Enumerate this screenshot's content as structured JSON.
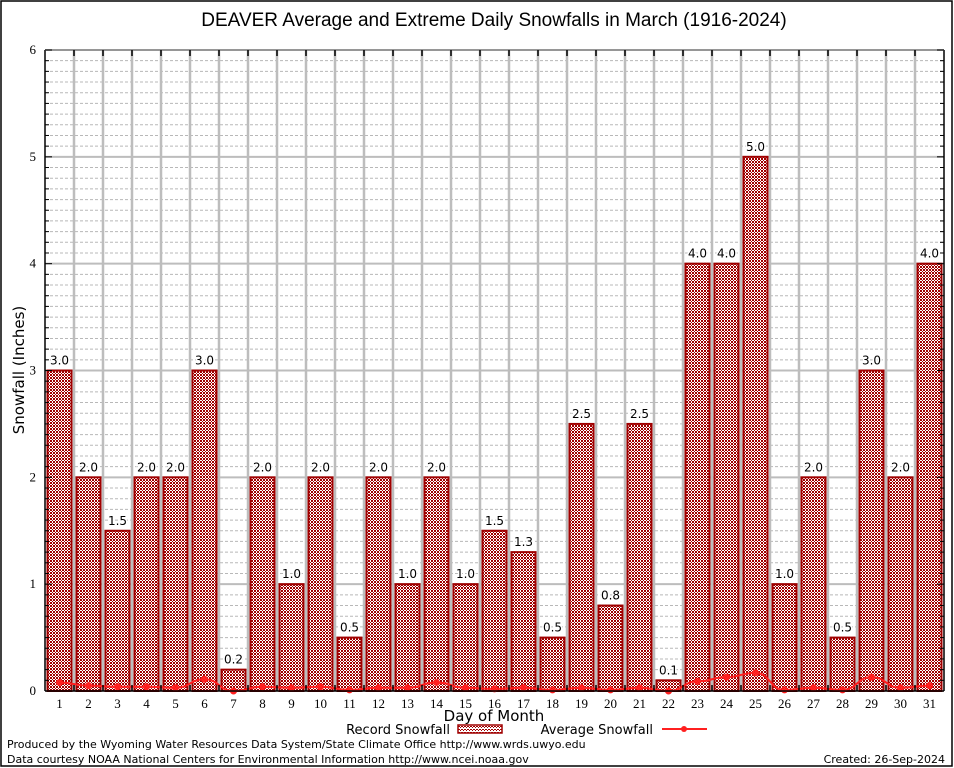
{
  "chart_data": {
    "type": "bar",
    "title": "DEAVER Average and Extreme Daily Snowfalls in March (1916-2024)",
    "xlabel": "Day of Month",
    "ylabel": "Snowfall (Inches)",
    "ylim": [
      0,
      6
    ],
    "yticks": [
      "0",
      "1",
      "2",
      "3",
      "4",
      "5",
      "6"
    ],
    "grid": true,
    "minor_grid_step": 0.1,
    "categories": [
      "1",
      "2",
      "3",
      "4",
      "5",
      "6",
      "7",
      "8",
      "9",
      "10",
      "11",
      "12",
      "13",
      "14",
      "15",
      "16",
      "17",
      "18",
      "19",
      "20",
      "21",
      "22",
      "23",
      "24",
      "25",
      "26",
      "27",
      "28",
      "29",
      "30",
      "31"
    ],
    "series": [
      {
        "name": "Record Snowfall",
        "kind": "bar",
        "color": "#a00000",
        "values": [
          3.0,
          2.0,
          1.5,
          2.0,
          2.0,
          3.0,
          0.2,
          2.0,
          1.0,
          2.0,
          0.5,
          2.0,
          1.0,
          2.0,
          1.0,
          1.5,
          1.3,
          0.5,
          2.5,
          0.8,
          2.5,
          0.1,
          4.0,
          4.0,
          5.0,
          1.0,
          2.0,
          0.5,
          3.0,
          2.0,
          4.0
        ],
        "labels": [
          "3.0",
          "2.0",
          "1.5",
          "2.0",
          "2.0",
          "3.0",
          "0.2",
          "2.0",
          "1.0",
          "2.0",
          "0.5",
          "2.0",
          "1.0",
          "2.0",
          "1.0",
          "1.5",
          "1.3",
          "0.5",
          "2.5",
          "0.8",
          "2.5",
          "0.1",
          "4.0",
          "4.0",
          "5.0",
          "1.0",
          "2.0",
          "0.5",
          "3.0",
          "2.0",
          "4.0"
        ]
      },
      {
        "name": "Average Snowfall",
        "kind": "line",
        "color": "#ff2020",
        "values": [
          0.08,
          0.05,
          0.04,
          0.04,
          0.03,
          0.11,
          0.0,
          0.04,
          0.03,
          0.04,
          0.01,
          0.03,
          0.03,
          0.08,
          0.03,
          0.02,
          0.03,
          0.01,
          0.03,
          0.01,
          0.03,
          0.0,
          0.09,
          0.13,
          0.17,
          0.01,
          0.03,
          0.01,
          0.13,
          0.03,
          0.05
        ]
      }
    ],
    "legend": {
      "placement": "bottom",
      "record_label": "Record Snowfall",
      "average_label": "Average Snowfall"
    }
  },
  "footer": {
    "line1": "Produced by the Wyoming Water Resources Data System/State Climate Office http://www.wrds.uwyo.edu",
    "line2": "Data courtesy NOAA National Centers for Environmental Information http://www.ncei.noaa.gov",
    "created": "Created: 26-Sep-2024"
  }
}
